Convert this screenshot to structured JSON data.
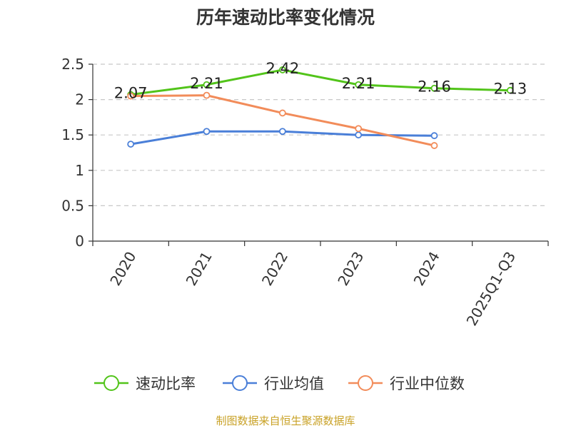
{
  "chart_data": {
    "type": "line",
    "title": "历年速动比率变化情况",
    "categories": [
      "2020",
      "2021",
      "2022",
      "2023",
      "2024",
      "2025Q1-Q3"
    ],
    "ylim": [
      0,
      2.5
    ],
    "yticks": [
      "0",
      "0.5",
      "1",
      "1.5",
      "2",
      "2.5"
    ],
    "grid": true,
    "legend_position": "bottom",
    "series": [
      {
        "name": "速动比率",
        "color": "#52c41a",
        "values": [
          2.07,
          2.21,
          2.42,
          2.21,
          2.16,
          2.13
        ],
        "labels": [
          "2.07",
          "2.21",
          "2.42",
          "2.21",
          "2.16",
          "2.13"
        ]
      },
      {
        "name": "行业均值",
        "color": "#4a7fd8",
        "values": [
          1.37,
          1.55,
          1.55,
          1.5,
          1.49,
          null
        ]
      },
      {
        "name": "行业中位数",
        "color": "#f28c5a",
        "values": [
          2.05,
          2.06,
          1.81,
          1.59,
          1.35,
          null
        ]
      }
    ]
  },
  "source_note": {
    "text": "制图数据来自恒生聚源数据库",
    "color": "#c9a227"
  }
}
